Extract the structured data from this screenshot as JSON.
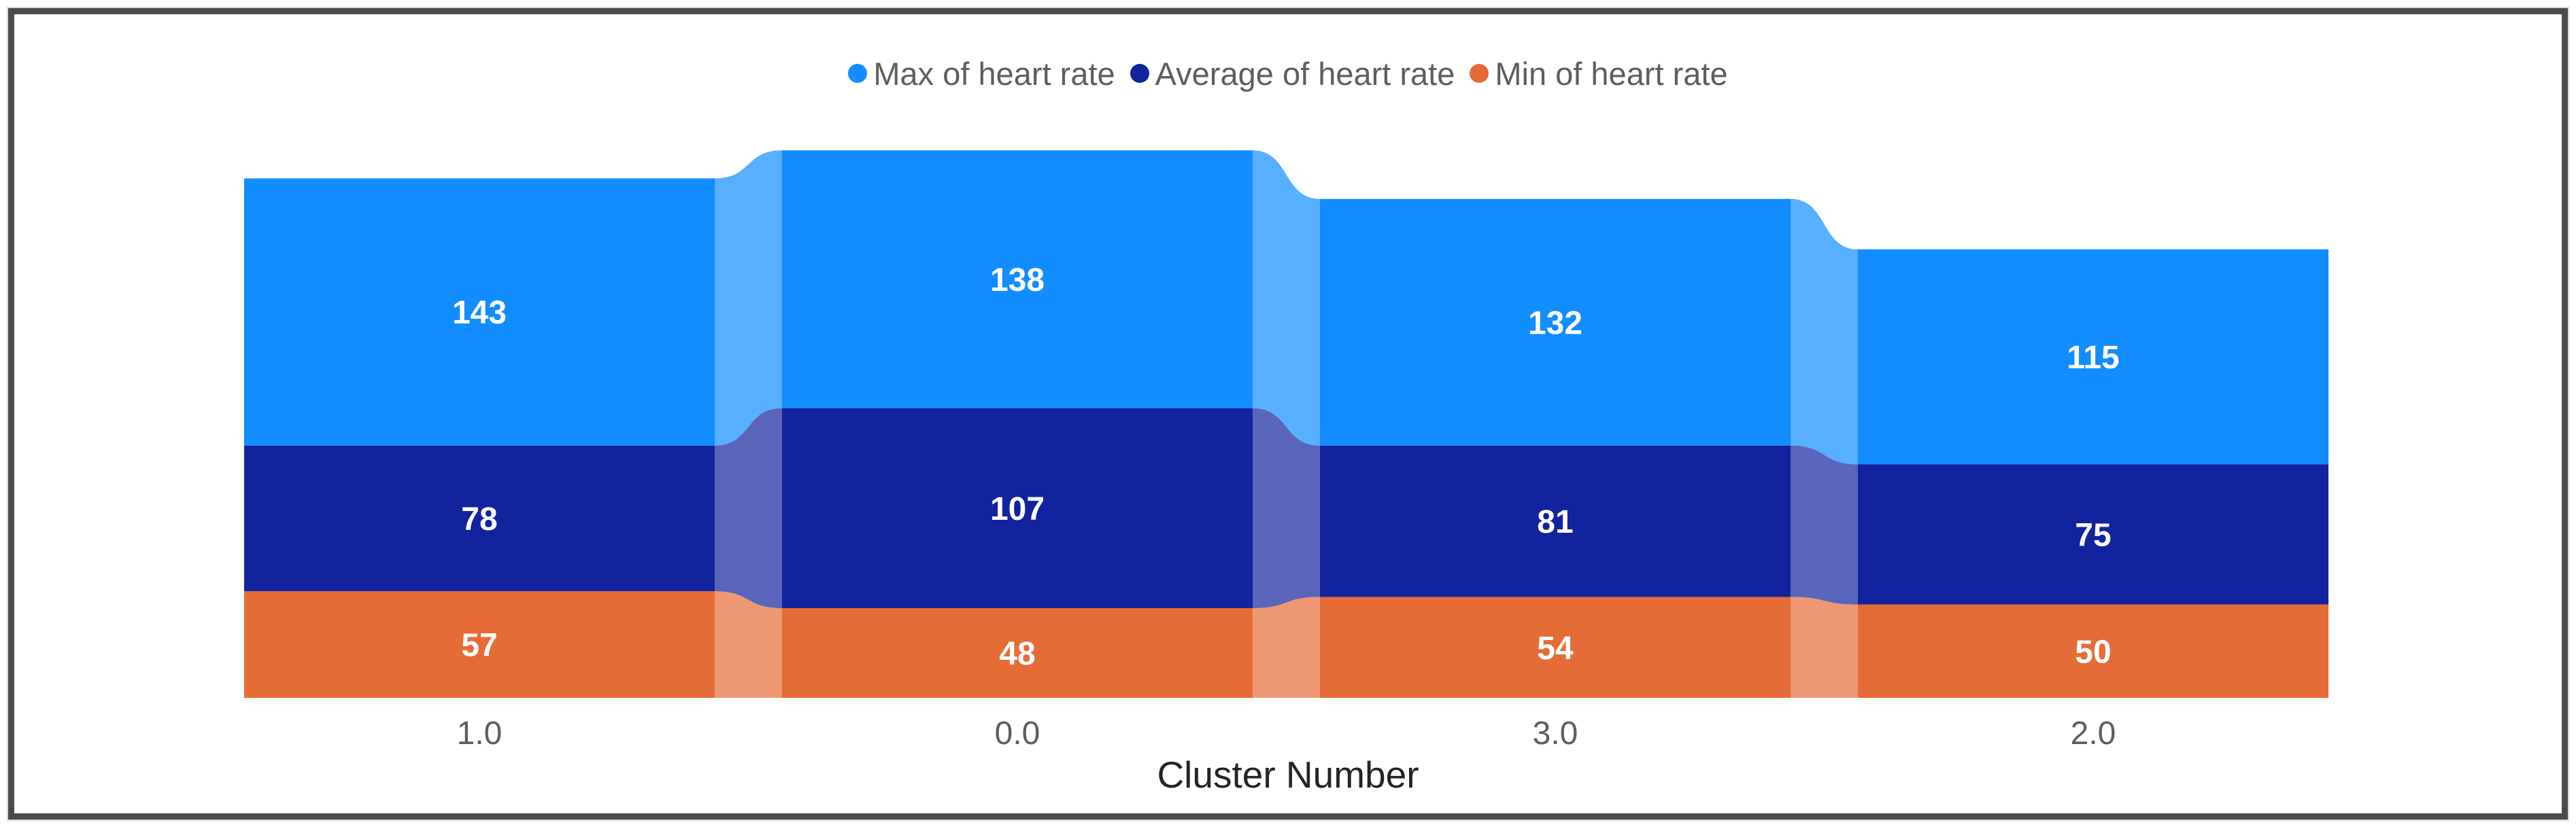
{
  "ui": {
    "frame_border_color": "#4B4B4B",
    "legend_text_color": "#605E5C",
    "axis_tick_color": "#605E5C",
    "axis_title_color": "#252423",
    "data_label_color": "#FFFFFF",
    "background": "#FFFFFF"
  },
  "chart_data": {
    "type": "bar",
    "variant": "ribbon-stacked",
    "title": "",
    "xlabel": "Cluster Number",
    "ylabel": "",
    "legend_position": "top-center",
    "grid": "off",
    "y_axis_visible": false,
    "categories": [
      "1.0",
      "0.0",
      "3.0",
      "2.0"
    ],
    "series": [
      {
        "name": "Max of heart rate",
        "color": "#118DFF",
        "values": [
          143,
          138,
          132,
          115
        ]
      },
      {
        "name": "Average of heart rate",
        "color": "#12239E",
        "values": [
          78,
          107,
          81,
          75
        ]
      },
      {
        "name": "Min of heart rate",
        "color": "#E66C37",
        "values": [
          57,
          48,
          54,
          50
        ]
      }
    ],
    "stack_order_top_to_bottom": [
      "Max of heart rate",
      "Average of heart rate",
      "Min of heart rate"
    ],
    "stack_totals": [
      278,
      293,
      267,
      240
    ],
    "ribbon_opacity": 0.7
  }
}
